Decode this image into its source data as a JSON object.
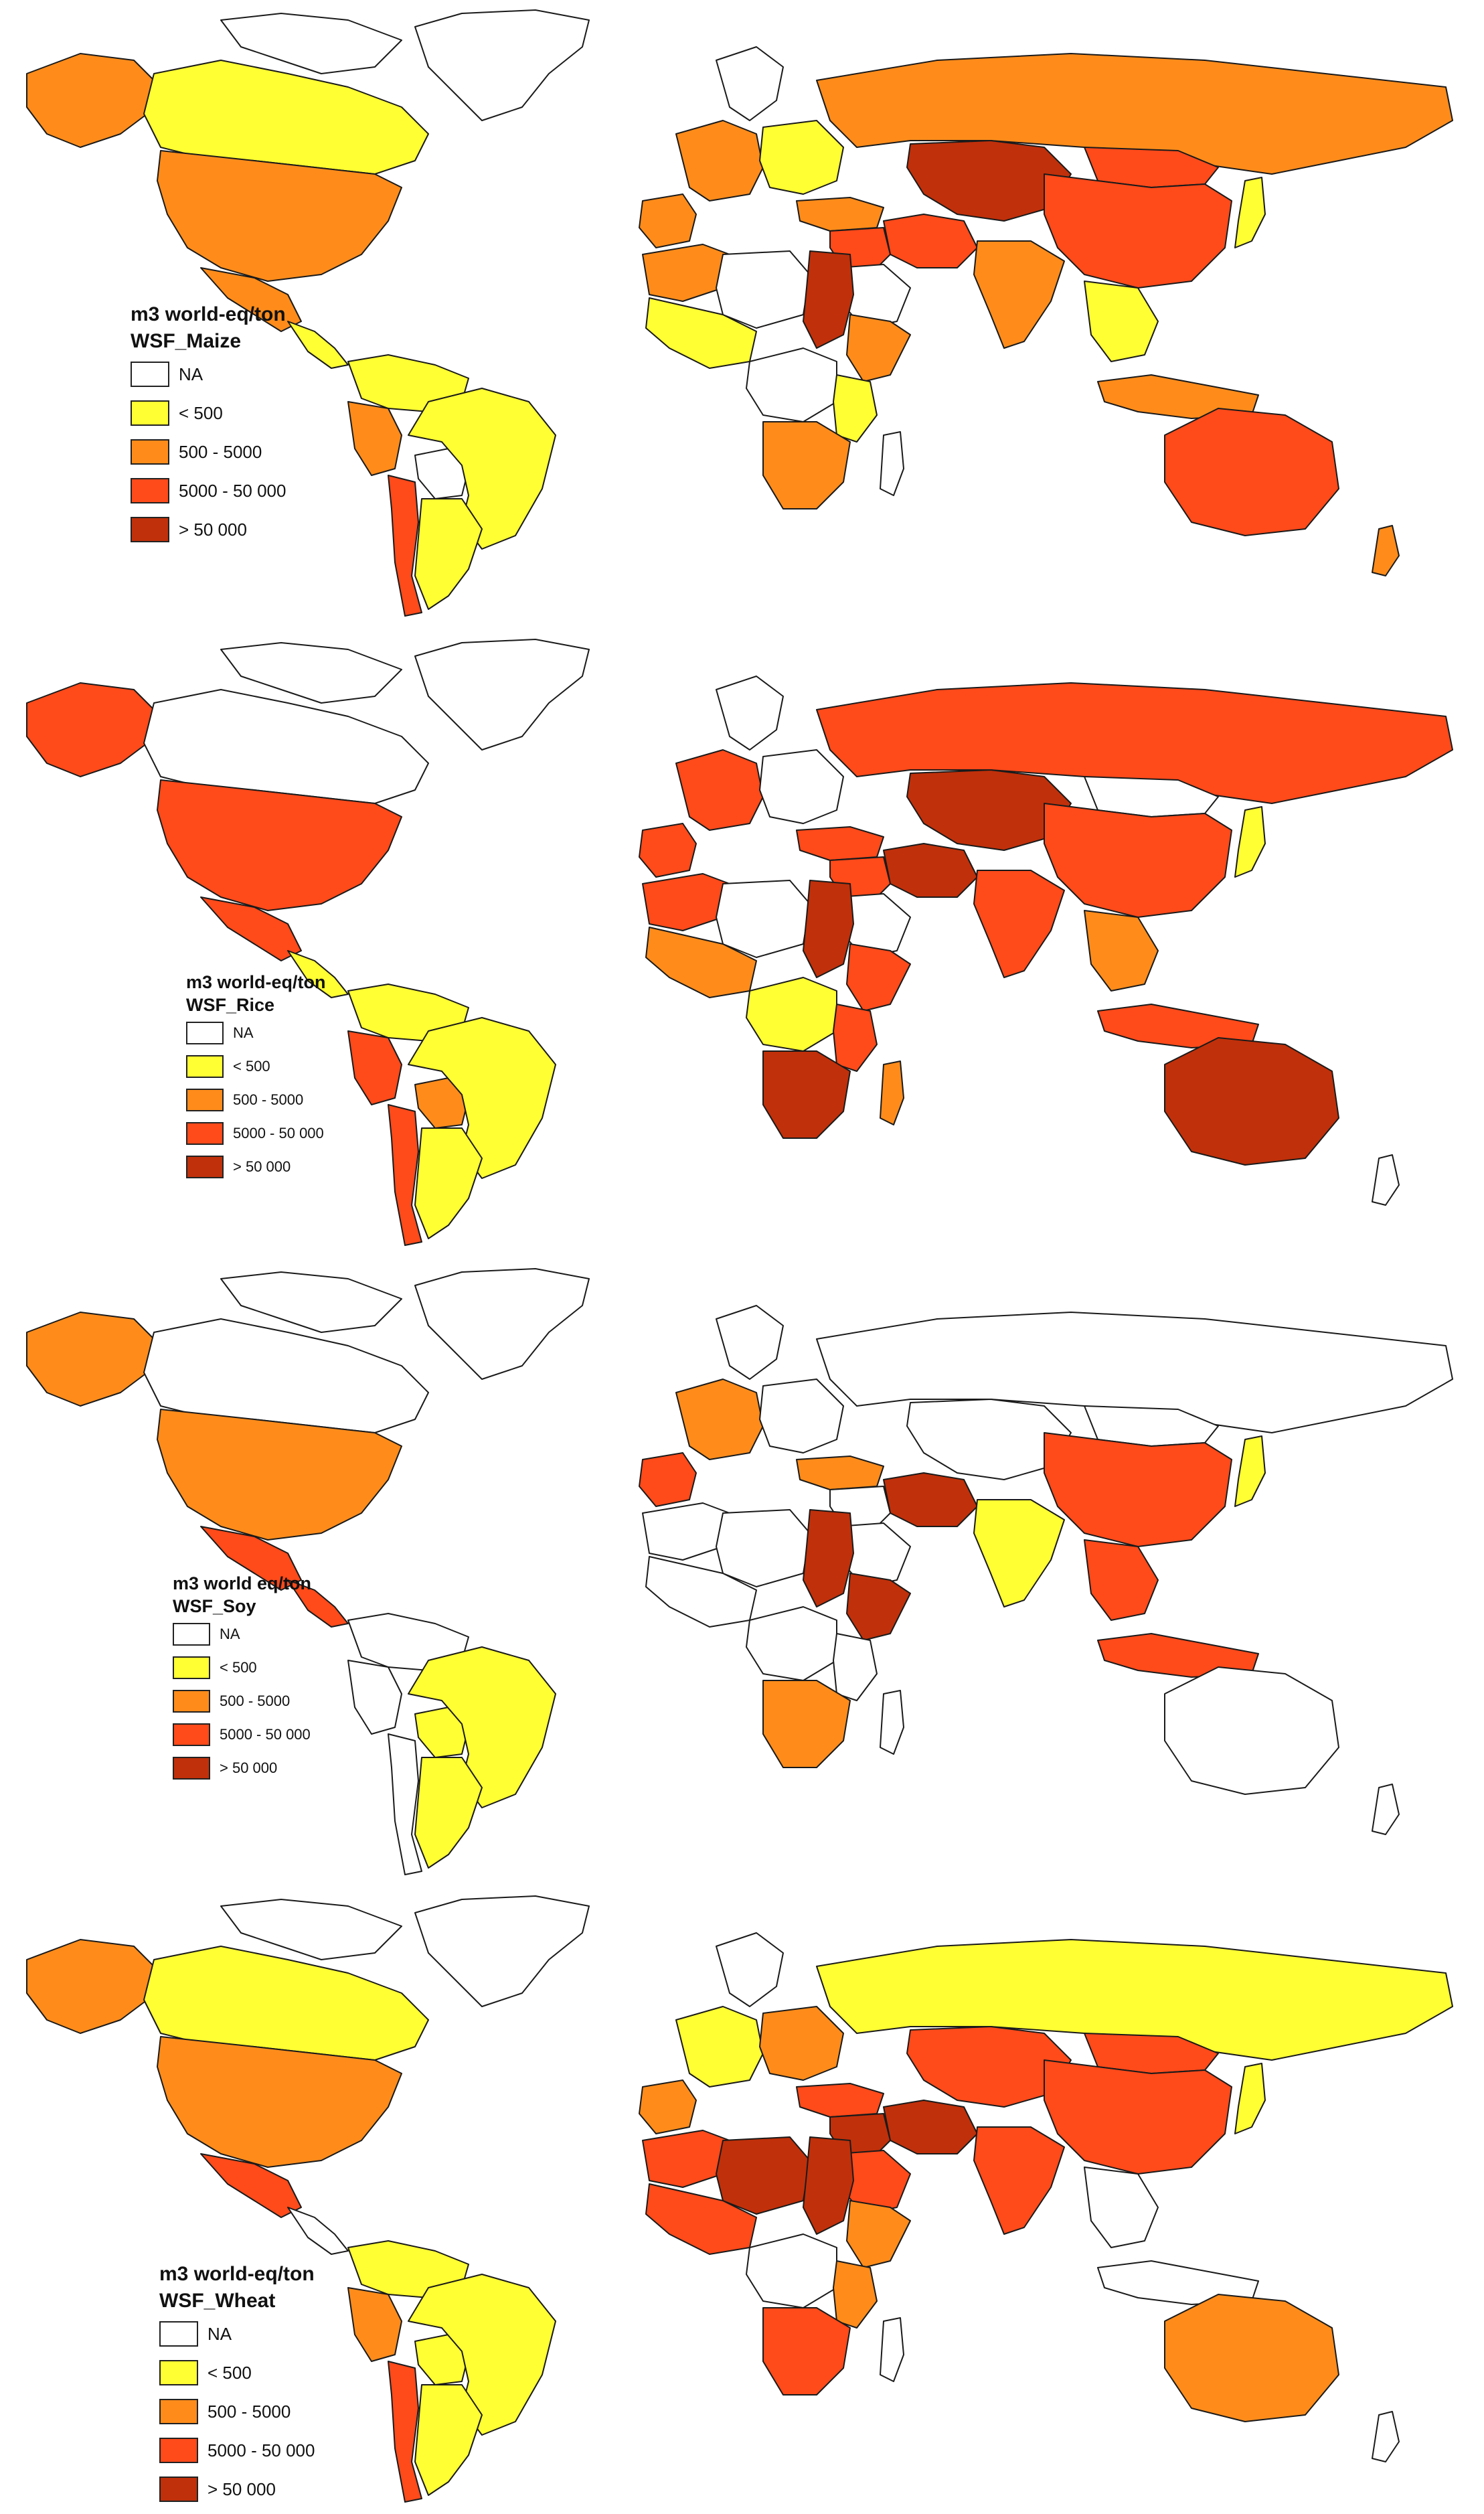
{
  "colors": {
    "na": "#ffffff",
    "lt500": "#ffff33",
    "r500_5000": "#ff8c1a",
    "r5000_50000": "#ff4a1a",
    "gt50000": "#c0300a",
    "outline": "#1a1a1a",
    "ice": "#ffffff"
  },
  "maps": [
    {
      "id": "maize",
      "legend": {
        "title1": "m3 world-eq/ton",
        "title2": "WSF_Maize",
        "items": [
          {
            "key": "na",
            "label": "NA"
          },
          {
            "key": "lt500",
            "label": "< 500"
          },
          {
            "key": "r500_5000",
            "label": "500 - 5000"
          },
          {
            "key": "r5000_50000",
            "label": "5000 - 50 000"
          },
          {
            "key": "gt50000",
            "label": "> 50 000"
          }
        ]
      },
      "regions": {
        "alaska": "r500_5000",
        "canada": "lt500",
        "usa": "r500_5000",
        "mexico": "r500_5000",
        "central_am": "lt500",
        "colombia_venezuela": "lt500",
        "brazil": "lt500",
        "peru": "r500_5000",
        "chile": "r5000_50000",
        "argentina": "lt500",
        "bolivia": "na",
        "russia": "r500_5000",
        "europe_w": "r500_5000",
        "europe_e": "lt500",
        "iberia": "r500_5000",
        "turkey": "r500_5000",
        "central_asia": "gt50000",
        "china": "r5000_50000",
        "mongolia": "r5000_50000",
        "india": "r500_5000",
        "middle_east": "r5000_50000",
        "saudi": "na",
        "iran": "r5000_50000",
        "se_asia": "lt500",
        "japan": "lt500",
        "indonesia": "r500_5000",
        "n_africa_w": "r500_5000",
        "sahara": "na",
        "egypt_sudan": "gt50000",
        "w_africa": "lt500",
        "horn": "r500_5000",
        "c_africa": "na",
        "e_africa": "lt500",
        "s_africa": "r500_5000",
        "madagascar": "na",
        "australia": "r5000_50000",
        "nz": "r500_5000"
      }
    },
    {
      "id": "rice",
      "legend": {
        "title1": "m3 world-eq/ton",
        "title2": "WSF_Rice",
        "items": [
          {
            "key": "na",
            "label": "NA"
          },
          {
            "key": "lt500",
            "label": "< 500"
          },
          {
            "key": "r500_5000",
            "label": "500 - 5000"
          },
          {
            "key": "r5000_50000",
            "label": "5000 - 50 000"
          },
          {
            "key": "gt50000",
            "label": "> 50 000"
          }
        ]
      },
      "regions": {
        "alaska": "r5000_50000",
        "canada": "na",
        "usa": "r5000_50000",
        "mexico": "r5000_50000",
        "central_am": "lt500",
        "colombia_venezuela": "lt500",
        "brazil": "lt500",
        "peru": "r5000_50000",
        "chile": "r5000_50000",
        "argentina": "lt500",
        "bolivia": "r500_5000",
        "russia": "r5000_50000",
        "europe_w": "r5000_50000",
        "europe_e": "na",
        "iberia": "r5000_50000",
        "turkey": "r5000_50000",
        "central_asia": "gt50000",
        "china": "r5000_50000",
        "mongolia": "na",
        "india": "r5000_50000",
        "middle_east": "r5000_50000",
        "saudi": "na",
        "iran": "gt50000",
        "se_asia": "r500_5000",
        "japan": "lt500",
        "indonesia": "r5000_50000",
        "n_africa_w": "r5000_50000",
        "sahara": "na",
        "egypt_sudan": "gt50000",
        "w_africa": "r500_5000",
        "horn": "r5000_50000",
        "c_africa": "lt500",
        "e_africa": "r5000_50000",
        "s_africa": "gt50000",
        "madagascar": "r500_5000",
        "australia": "gt50000",
        "nz": "na"
      }
    },
    {
      "id": "soy",
      "legend": {
        "title1": "m3 world eq/ton",
        "title2": "WSF_Soy",
        "items": [
          {
            "key": "na",
            "label": "NA"
          },
          {
            "key": "lt500",
            "label": "< 500"
          },
          {
            "key": "r500_5000",
            "label": "500 - 5000"
          },
          {
            "key": "r5000_50000",
            "label": "5000 - 50 000"
          },
          {
            "key": "gt50000",
            "label": "> 50 000"
          }
        ]
      },
      "regions": {
        "alaska": "r500_5000",
        "canada": "na",
        "usa": "r500_5000",
        "mexico": "r5000_50000",
        "central_am": "r5000_50000",
        "colombia_venezuela": "na",
        "brazil": "lt500",
        "peru": "na",
        "chile": "na",
        "argentina": "lt500",
        "bolivia": "lt500",
        "russia": "na",
        "europe_w": "r500_5000",
        "europe_e": "na",
        "iberia": "r5000_50000",
        "turkey": "r500_5000",
        "central_asia": "na",
        "china": "r5000_50000",
        "mongolia": "na",
        "india": "lt500",
        "middle_east": "na",
        "saudi": "na",
        "iran": "gt50000",
        "se_asia": "r5000_50000",
        "japan": "lt500",
        "indonesia": "r5000_50000",
        "n_africa_w": "na",
        "sahara": "na",
        "egypt_sudan": "gt50000",
        "w_africa": "na",
        "horn": "gt50000",
        "c_africa": "na",
        "e_africa": "na",
        "s_africa": "r500_5000",
        "madagascar": "na",
        "australia": "na",
        "nz": "na"
      }
    },
    {
      "id": "wheat",
      "legend": {
        "title1": "m3 world-eq/ton",
        "title2": "WSF_Wheat",
        "items": [
          {
            "key": "na",
            "label": "NA"
          },
          {
            "key": "lt500",
            "label": "< 500"
          },
          {
            "key": "r500_5000",
            "label": "500 - 5000"
          },
          {
            "key": "r5000_50000",
            "label": "5000 - 50 000"
          },
          {
            "key": "gt50000",
            "label": "> 50 000"
          }
        ]
      },
      "regions": {
        "alaska": "r500_5000",
        "canada": "lt500",
        "usa": "r500_5000",
        "mexico": "r5000_50000",
        "central_am": "na",
        "colombia_venezuela": "lt500",
        "brazil": "lt500",
        "peru": "r500_5000",
        "chile": "r5000_50000",
        "argentina": "lt500",
        "bolivia": "lt500",
        "russia": "lt500",
        "europe_w": "lt500",
        "europe_e": "r500_5000",
        "iberia": "r500_5000",
        "turkey": "r5000_50000",
        "central_asia": "r5000_50000",
        "china": "r5000_50000",
        "mongolia": "r5000_50000",
        "india": "r5000_50000",
        "middle_east": "gt50000",
        "saudi": "r5000_50000",
        "iran": "gt50000",
        "se_asia": "na",
        "japan": "lt500",
        "indonesia": "na",
        "n_africa_w": "r5000_50000",
        "sahara": "gt50000",
        "egypt_sudan": "gt50000",
        "w_africa": "r5000_50000",
        "horn": "r500_5000",
        "c_africa": "na",
        "e_africa": "r500_5000",
        "s_africa": "r5000_50000",
        "madagascar": "na",
        "australia": "r500_5000",
        "nz": "na"
      }
    }
  ]
}
